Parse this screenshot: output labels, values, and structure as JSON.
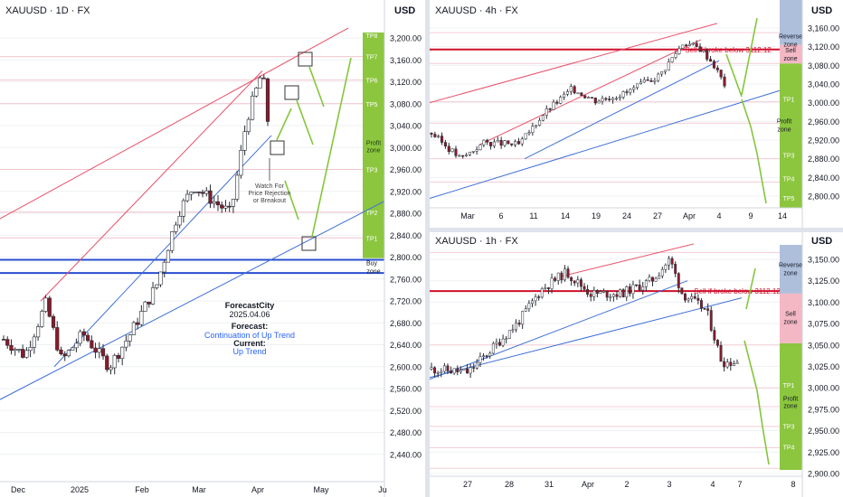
{
  "charts": [
    {
      "title": "XAUUSD · 1D · FX",
      "currency": "USD",
      "y_ticks": [
        "3,200.00",
        "3,160.00",
        "3,120.00",
        "3,080.00",
        "3,040.00",
        "3,000.00",
        "2,960.00",
        "2,920.00",
        "2,880.00",
        "2,840.00",
        "2,800.00",
        "2,760.00",
        "2,720.00",
        "2,680.00",
        "2,640.00",
        "2,600.00",
        "2,560.00",
        "2,520.00",
        "2,480.00",
        "2,440.00"
      ],
      "x_ticks": [
        "Dec",
        "2025",
        "Feb",
        "Mar",
        "Apr",
        "May",
        "Ju"
      ],
      "zone_labels": [
        "TP8",
        "TP7",
        "TP6",
        "TP5",
        "Profit zone",
        "TP3",
        "TP2",
        "TP1",
        "Buy zone"
      ],
      "note": "Watch For Price Rejection or Breakout",
      "info": {
        "brand": "ForecastCity",
        "date": "2025.04.06",
        "forecast_label": "Forecast:",
        "forecast_value": "Continuation of Up Trend",
        "current_label": "Current:",
        "current_value": "Up Trend"
      }
    },
    {
      "title": "XAUUSD · 4h · FX",
      "currency": "USD",
      "y_ticks": [
        "3,160.00",
        "3,120.00",
        "3,080.00",
        "3,040.00",
        "3,000.00",
        "2,960.00",
        "2,920.00",
        "2,880.00",
        "2,840.00",
        "2,800.00"
      ],
      "x_ticks": [
        "Mar",
        "6",
        "11",
        "14",
        "19",
        "24",
        "27",
        "Apr",
        "4",
        "9",
        "14"
      ],
      "zone_labels": [
        "Reverse zone",
        "Sell zone",
        "TP1",
        "Profit zone",
        "TP3",
        "TP4",
        "TP5"
      ],
      "level_label": "Sell if broke below 3112.12"
    },
    {
      "title": "XAUUSD · 1h · FX",
      "currency": "USD",
      "y_ticks": [
        "3,150.00",
        "3,125.00",
        "3,100.00",
        "3,075.00",
        "3,050.00",
        "3,025.00",
        "3,000.00",
        "2,975.00",
        "2,950.00",
        "2,925.00",
        "2,900.00"
      ],
      "x_ticks": [
        "27",
        "28",
        "31",
        "Apr",
        "2",
        "3",
        "4",
        "7",
        "8"
      ],
      "zone_labels": [
        "Reverse zone",
        "Sell zone",
        "TP1",
        "Profit zone",
        "TP3",
        "TP4"
      ],
      "level_label": "Sell if broke below 3112.12"
    }
  ],
  "colors": {
    "up": "#ffffff",
    "down": "#8b1a2b",
    "wick": "#262b33",
    "trend_blue": "#3f6fd8",
    "trend_red": "#e8506a",
    "level_red": "#d0102c",
    "level_blue": "#2a4fd0",
    "zone_green": "#8cc63f",
    "zone_pink": "#f4b8c4",
    "zone_blue": "#aebfdc",
    "arrow_green": "#84c63a"
  }
}
